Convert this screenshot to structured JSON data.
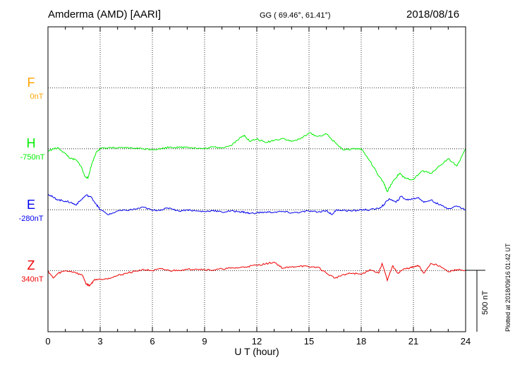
{
  "header": {
    "station": "Amderma (AMD)  [AARI]",
    "coords": "GG ( 69.46°,  61.41°)",
    "date": "2018/08/16"
  },
  "footer": {
    "plotted": "Plotted at 2018/09/16 01:42 UT",
    "scale_label": "500 nT"
  },
  "chart_data": {
    "type": "line",
    "xlabel": "U T (hour)",
    "xlim": [
      0,
      24
    ],
    "xticks": [
      0,
      3,
      6,
      9,
      12,
      15,
      18,
      21,
      24
    ],
    "grid": true,
    "scale_bar_nT": 500,
    "series": [
      {
        "name": "F",
        "baseline_label": "0nT",
        "color": "#ffa500",
        "level_index": 1,
        "x": [],
        "y": []
      },
      {
        "name": "H",
        "baseline_label": "-750nT",
        "color": "#00ee00",
        "level_index": 2,
        "x": [
          0,
          0.3,
          0.6,
          1,
          1.3,
          1.6,
          1.9,
          2.1,
          2.3,
          2.5,
          2.8,
          3,
          3.5,
          4,
          4.5,
          5,
          5.5,
          6,
          6.5,
          7,
          7.5,
          8,
          8.5,
          9,
          9.5,
          10,
          10.5,
          11,
          11.3,
          11.6,
          12,
          12.5,
          13,
          13.5,
          14,
          14.5,
          15,
          15.5,
          16,
          16.5,
          17,
          17.5,
          18,
          18.5,
          19,
          19.3,
          19.5,
          19.8,
          20.2,
          20.5,
          21,
          21.5,
          22,
          22.5,
          23,
          23.5,
          24
        ],
        "y": [
          -20,
          0,
          5,
          -40,
          -80,
          -90,
          -140,
          -220,
          -240,
          -130,
          -20,
          0,
          10,
          5,
          8,
          5,
          0,
          -5,
          0,
          15,
          10,
          15,
          5,
          0,
          15,
          10,
          25,
          85,
          110,
          60,
          80,
          50,
          70,
          85,
          60,
          80,
          130,
          100,
          120,
          50,
          -10,
          0,
          0,
          -100,
          -220,
          -280,
          -350,
          -270,
          -200,
          -240,
          -250,
          -180,
          -200,
          -140,
          -80,
          -140,
          0
        ]
      },
      {
        "name": "E",
        "baseline_label": "-280nT",
        "color": "#0000ee",
        "level_index": 3,
        "x": [
          0,
          0.3,
          0.6,
          1,
          1.3,
          1.6,
          1.9,
          2.2,
          2.5,
          2.8,
          3,
          3.5,
          4,
          4.5,
          5,
          5.5,
          6,
          6.5,
          7,
          7.5,
          8,
          8.5,
          9,
          9.5,
          10,
          10.5,
          11,
          11.3,
          11.6,
          12,
          12.5,
          13,
          13.5,
          14,
          14.5,
          15,
          15.5,
          16,
          16.3,
          16.6,
          17,
          17.5,
          18,
          18.5,
          19,
          19.3,
          19.6,
          20,
          20.3,
          20.6,
          21,
          21.3,
          21.6,
          22,
          22.5,
          23,
          23.5,
          24
        ],
        "y": [
          130,
          100,
          80,
          70,
          60,
          40,
          80,
          120,
          100,
          40,
          0,
          -40,
          -10,
          -5,
          5,
          20,
          -5,
          0,
          15,
          -10,
          0,
          -10,
          -15,
          -5,
          -20,
          -10,
          -15,
          -20,
          -30,
          -25,
          -20,
          -20,
          -15,
          -25,
          -20,
          -10,
          -20,
          -5,
          -40,
          0,
          -5,
          -10,
          0,
          0,
          10,
          40,
          90,
          60,
          110,
          80,
          90,
          100,
          60,
          80,
          40,
          10,
          30,
          0
        ]
      },
      {
        "name": "Z",
        "baseline_label": "340nT",
        "color": "#ee0000",
        "level_index": 4,
        "x": [
          0,
          0.3,
          0.6,
          1,
          1.5,
          2,
          2.2,
          2.4,
          2.7,
          3,
          3.5,
          4,
          4.5,
          5,
          5.5,
          6,
          6.5,
          7,
          7.5,
          8,
          8.5,
          9,
          9.5,
          10,
          10.5,
          11,
          11.5,
          12,
          12.5,
          13,
          13.5,
          14,
          14.5,
          15,
          15.5,
          16,
          16.5,
          17,
          17.5,
          18,
          18.5,
          19,
          19.2,
          19.5,
          19.8,
          20.1,
          20.4,
          20.7,
          21,
          21.3,
          21.6,
          22,
          22.5,
          23,
          23.5,
          24
        ],
        "y": [
          0,
          -60,
          -20,
          0,
          -10,
          -40,
          -110,
          -120,
          -70,
          -70,
          -60,
          -40,
          -20,
          -5,
          10,
          0,
          15,
          0,
          5,
          10,
          15,
          10,
          5,
          15,
          20,
          25,
          35,
          45,
          55,
          70,
          20,
          30,
          40,
          30,
          30,
          -20,
          -60,
          -30,
          -20,
          -30,
          10,
          -20,
          60,
          -80,
          40,
          -20,
          10,
          20,
          30,
          40,
          -20,
          60,
          40,
          -10,
          10,
          0
        ]
      }
    ]
  }
}
